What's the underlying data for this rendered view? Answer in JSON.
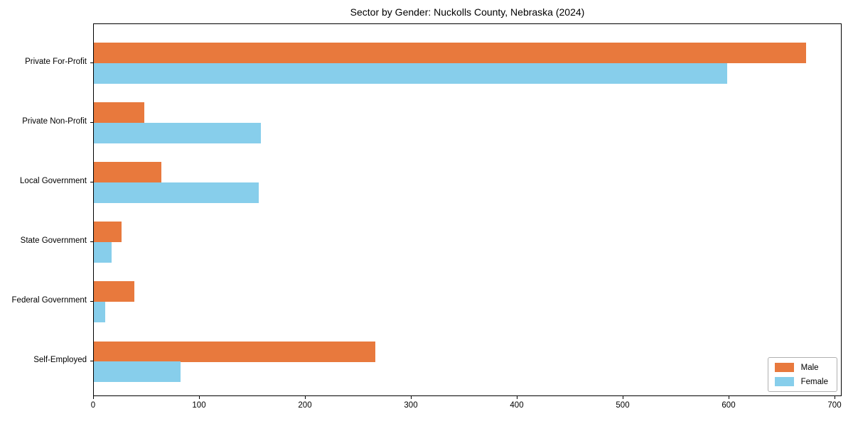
{
  "title": "Sector by Gender: Nuckolls County, Nebraska (2024)",
  "colors": {
    "male": "#E8793D",
    "female": "#87CEEB",
    "axis": "#000000",
    "legend_border": "#b0b0b0",
    "background": "#ffffff"
  },
  "chart_data": {
    "type": "bar",
    "orientation": "horizontal",
    "title": "Sector by Gender: Nuckolls County, Nebraska (2024)",
    "xlabel": "",
    "ylabel": "",
    "categories": [
      "Private For-Profit",
      "Private Non-Profit",
      "Local Government",
      "State Government",
      "Federal Government",
      "Self-Employed"
    ],
    "series": [
      {
        "name": "Male",
        "color": "#E8793D",
        "values": [
          673,
          48,
          64,
          26,
          38,
          266
        ]
      },
      {
        "name": "Female",
        "color": "#87CEEB",
        "values": [
          598,
          158,
          156,
          17,
          11,
          82
        ]
      }
    ],
    "xlim": [
      0,
      707
    ],
    "xticks": [
      0,
      100,
      200,
      300,
      400,
      500,
      600,
      700
    ],
    "grid": false,
    "legend": {
      "position": "lower right",
      "entries": [
        "Male",
        "Female"
      ]
    }
  }
}
